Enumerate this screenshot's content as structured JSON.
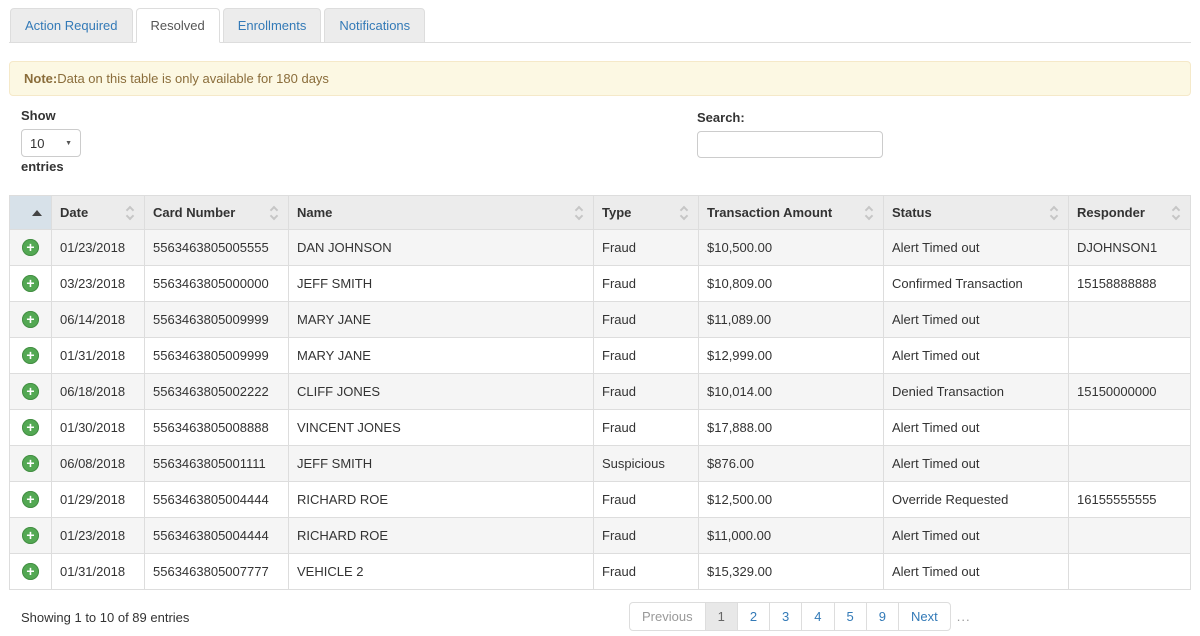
{
  "tabs": [
    {
      "label": "Action Required",
      "active": false
    },
    {
      "label": "Resolved",
      "active": true
    },
    {
      "label": "Enrollments",
      "active": false
    },
    {
      "label": "Notifications",
      "active": false
    }
  ],
  "note": {
    "prefix": "Note:",
    "text": "Data on this table is only available for 180 days"
  },
  "controls": {
    "show_label": "Show",
    "page_size": "10",
    "entries_label": "entries",
    "search_label": "Search:",
    "search_value": ""
  },
  "table": {
    "columns": [
      "Date",
      "Card Number",
      "Name",
      "Type",
      "Transaction Amount",
      "Status",
      "Responder"
    ],
    "sorted_column_index": 0,
    "rows": [
      {
        "date": "01/23/2018",
        "card": "5563463805005555",
        "name": "DAN JOHNSON",
        "type": "Fraud",
        "amount": "$10,500.00",
        "status": "Alert Timed out",
        "responder": "DJOHNSON1"
      },
      {
        "date": "03/23/2018",
        "card": "5563463805000000",
        "name": "JEFF SMITH",
        "type": "Fraud",
        "amount": "$10,809.00",
        "status": "Confirmed Transaction",
        "responder": "15158888888"
      },
      {
        "date": "06/14/2018",
        "card": "5563463805009999",
        "name": "MARY JANE",
        "type": "Fraud",
        "amount": "$11,089.00",
        "status": "Alert Timed out",
        "responder": ""
      },
      {
        "date": "01/31/2018",
        "card": "5563463805009999",
        "name": "MARY JANE",
        "type": "Fraud",
        "amount": "$12,999.00",
        "status": "Alert Timed out",
        "responder": ""
      },
      {
        "date": "06/18/2018",
        "card": "5563463805002222",
        "name": "CLIFF JONES",
        "type": "Fraud",
        "amount": "$10,014.00",
        "status": "Denied Transaction",
        "responder": "15150000000"
      },
      {
        "date": "01/30/2018",
        "card": "5563463805008888",
        "name": "VINCENT JONES",
        "type": "Fraud",
        "amount": "$17,888.00",
        "status": "Alert Timed out",
        "responder": ""
      },
      {
        "date": "06/08/2018",
        "card": "5563463805001111",
        "name": "JEFF SMITH",
        "type": "Suspicious",
        "amount": "$876.00",
        "status": "Alert Timed out",
        "responder": ""
      },
      {
        "date": "01/29/2018",
        "card": "5563463805004444",
        "name": "RICHARD ROE",
        "type": "Fraud",
        "amount": "$12,500.00",
        "status": "Override Requested",
        "responder": "16155555555"
      },
      {
        "date": "01/23/2018",
        "card": "5563463805004444",
        "name": "RICHARD ROE",
        "type": "Fraud",
        "amount": "$11,000.00",
        "status": "Alert Timed out",
        "responder": ""
      },
      {
        "date": "01/31/2018",
        "card": "5563463805007777",
        "name": "VEHICLE 2",
        "type": "Fraud",
        "amount": "$15,329.00",
        "status": "Alert Timed out",
        "responder": ""
      }
    ]
  },
  "footer": {
    "showing": "Showing 1 to 10 of 89 entries",
    "pagination": {
      "previous_label": "Previous",
      "pages": [
        "1",
        "2",
        "3",
        "4",
        "5",
        "9"
      ],
      "active_page": "1",
      "next_label": "Next",
      "ellipsis": "..."
    }
  },
  "icons": {
    "expand_row": "plus-circle-icon",
    "sort_asc": "sort-asc-icon",
    "sort_both": "sort-icon",
    "select_caret": "chevron-down-icon"
  },
  "colors": {
    "link_blue": "#337ab7",
    "note_bg": "#fcf8e3",
    "note_text": "#8a6d3b",
    "header_bg": "#ececec",
    "sorted_header_bg": "#d7e1e9",
    "row_stripe": "#f5f5f5",
    "table_border": "#dddddd",
    "plus_green": "#53a853",
    "active_page_bg": "#e8e8e8"
  }
}
